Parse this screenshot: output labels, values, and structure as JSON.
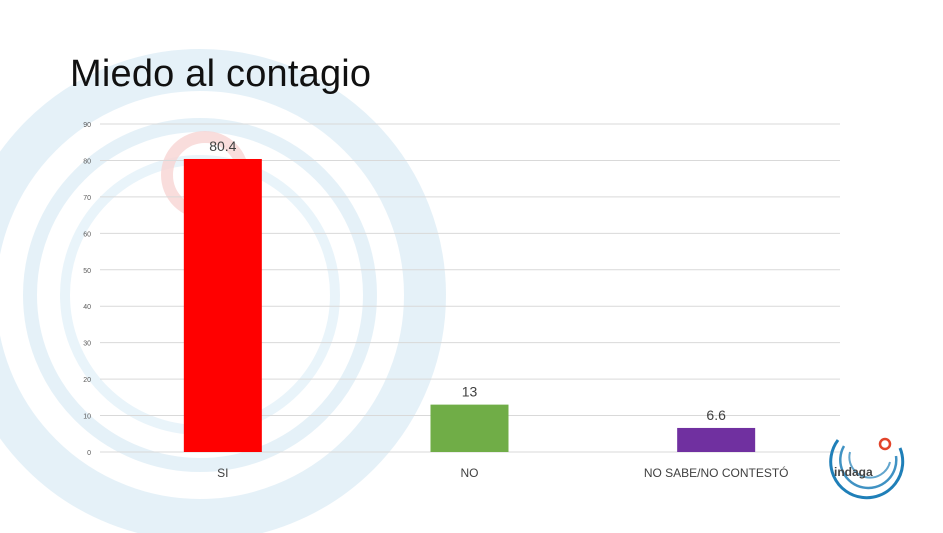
{
  "slide": {
    "title": "Miedo al contagio"
  },
  "logo": {
    "text": "indaga",
    "icon": "indaga-logo"
  },
  "colors": {
    "decor_ring_blue": "#cfe6f3",
    "decor_ring_red": "#f7d5d3",
    "logo_blue": "#1f7fb8",
    "logo_red": "#e2442a",
    "gridline": "#d9d9d9",
    "tick_text": "#595959"
  },
  "chart_data": {
    "type": "bar",
    "title": "",
    "xlabel": "",
    "ylabel": "",
    "categories": [
      "SI",
      "NO",
      "NO SABE/NO CONTESTÓ"
    ],
    "values": [
      80.4,
      13,
      6.6
    ],
    "value_labels": [
      "80.4",
      "13",
      "6.6"
    ],
    "colors": [
      "#ff0000",
      "#70ad47",
      "#7030a0"
    ],
    "ylim": [
      0,
      90
    ],
    "yticks": [
      0,
      10,
      20,
      30,
      40,
      50,
      60,
      70,
      80,
      90
    ],
    "grid": true,
    "legend": "none"
  }
}
